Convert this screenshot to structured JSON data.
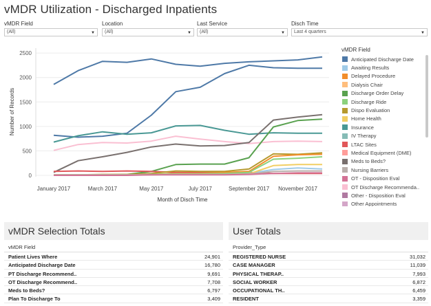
{
  "title": "vMDR Utilization - Discharged Inpatients",
  "filters": [
    {
      "label": "vMDR Field",
      "value": "(All)"
    },
    {
      "label": "Location",
      "value": "(All)"
    },
    {
      "label": "Last Service",
      "value": "(All)"
    },
    {
      "label": "Disch Time",
      "value": "Last 4 quarters"
    }
  ],
  "legend": {
    "title": "vMDR Field",
    "items": [
      {
        "label": "Anticipated Discharge Date",
        "color": "#4e79a7"
      },
      {
        "label": "Awaiting Results",
        "color": "#a0cbe8"
      },
      {
        "label": "Delayed Procedure",
        "color": "#f28e2b"
      },
      {
        "label": "Dialysis Chair",
        "color": "#ffbe7d"
      },
      {
        "label": "Discharge Order Delay",
        "color": "#59a14f"
      },
      {
        "label": "Discharge Ride",
        "color": "#8cd17d"
      },
      {
        "label": "Dispo Evaluation",
        "color": "#b6992d"
      },
      {
        "label": "Home Health",
        "color": "#f1ce63"
      },
      {
        "label": "Insurance",
        "color": "#499894"
      },
      {
        "label": "IV Therapy",
        "color": "#86bcb6"
      },
      {
        "label": "LTAC Sites",
        "color": "#e15759"
      },
      {
        "label": "Medical Equipment (DME)",
        "color": "#ff9d9a"
      },
      {
        "label": "Meds to Beds?",
        "color": "#79706e"
      },
      {
        "label": "Nursing Barriers",
        "color": "#bab0ac"
      },
      {
        "label": "OT - Disposition Eval",
        "color": "#d37295"
      },
      {
        "label": "OT Discharge Recommenda..",
        "color": "#fabfd2"
      },
      {
        "label": "Other - Disposition Eval",
        "color": "#b07aa1"
      },
      {
        "label": "Other Appointments",
        "color": "#d4a6c8"
      }
    ]
  },
  "chart_data": {
    "type": "line",
    "xlabel": "Month of Disch Time",
    "ylabel": "Number of Records",
    "x_ticks": [
      "January 2017",
      "March 2017",
      "May 2017",
      "July 2017",
      "September 2017",
      "November 2017"
    ],
    "x": [
      "Jan 2017",
      "Feb 2017",
      "Mar 2017",
      "Apr 2017",
      "May 2017",
      "Jun 2017",
      "Jul 2017",
      "Aug 2017",
      "Sep 2017",
      "Oct 2017",
      "Nov 2017",
      "Dec 2017"
    ],
    "ylim": [
      0,
      2600
    ],
    "y_ticks": [
      0,
      500,
      1000,
      1500,
      2000,
      2500
    ],
    "grid": "horizontal",
    "series": [
      {
        "name": "Anticipated Discharge Date",
        "color": "#4e79a7",
        "values": [
          1860,
          2140,
          2330,
          2310,
          2380,
          2270,
          2230,
          2290,
          2320,
          2340,
          2360,
          2420
        ]
      },
      {
        "name": "Anticipated Discharge Date",
        "color": "#4e79a7",
        "values": [
          820,
          780,
          800,
          860,
          1230,
          1710,
          1800,
          2080,
          2250,
          2200,
          2190,
          2190
        ]
      },
      {
        "name": "Insurance",
        "color": "#499894",
        "values": [
          680,
          810,
          890,
          840,
          870,
          1010,
          1020,
          920,
          840,
          870,
          860,
          860
        ]
      },
      {
        "name": "OT Discharge Recommenda..",
        "color": "#fabfd2",
        "values": [
          510,
          630,
          670,
          660,
          700,
          800,
          740,
          690,
          650,
          690,
          700,
          690
        ]
      },
      {
        "name": "Meds to Beds?",
        "color": "#79706e",
        "values": [
          60,
          300,
          380,
          470,
          580,
          640,
          600,
          610,
          670,
          1130,
          1190,
          1240
        ]
      },
      {
        "name": "Discharge Order Delay",
        "color": "#59a14f",
        "values": [
          10,
          10,
          10,
          20,
          80,
          220,
          230,
          230,
          360,
          990,
          1120,
          1150
        ]
      },
      {
        "name": "LTAC Sites",
        "color": "#e15759",
        "values": [
          80,
          90,
          80,
          90,
          80,
          60,
          60,
          60,
          60,
          40,
          40,
          40
        ]
      },
      {
        "name": "Dispo Evaluation",
        "color": "#b6992d",
        "values": [
          10,
          10,
          20,
          20,
          40,
          90,
          80,
          80,
          130,
          440,
          430,
          460
        ]
      },
      {
        "name": "Delayed Procedure",
        "color": "#f28e2b",
        "values": [
          10,
          10,
          10,
          10,
          20,
          40,
          40,
          60,
          80,
          390,
          420,
          430
        ]
      },
      {
        "name": "Awaiting Results",
        "color": "#a0cbe8",
        "values": [
          10,
          10,
          10,
          10,
          20,
          20,
          20,
          30,
          40,
          120,
          150,
          130
        ]
      },
      {
        "name": "Discharge Ride",
        "color": "#8cd17d",
        "values": [
          10,
          10,
          10,
          10,
          20,
          30,
          30,
          40,
          60,
          330,
          350,
          380
        ]
      },
      {
        "name": "Home Health",
        "color": "#f1ce63",
        "values": [
          10,
          10,
          10,
          10,
          10,
          20,
          20,
          20,
          30,
          200,
          220,
          220
        ]
      },
      {
        "name": "Nursing Barriers",
        "color": "#bab0ac",
        "values": [
          10,
          10,
          10,
          10,
          10,
          20,
          20,
          20,
          30,
          80,
          90,
          90
        ]
      },
      {
        "name": "OT - Disposition Eval",
        "color": "#d37295",
        "values": [
          0,
          0,
          0,
          0,
          10,
          10,
          10,
          10,
          20,
          40,
          50,
          50
        ]
      }
    ]
  },
  "selection_totals": {
    "title": "vMDR Selection Totals",
    "column": "vMDR Field",
    "rows": [
      {
        "label": "Patient Lives Where",
        "value": "24,901"
      },
      {
        "label": "Anticipated Discharge Date",
        "value": "16,780"
      },
      {
        "label": "PT Discharge Recommend..",
        "value": "9,691"
      },
      {
        "label": "OT Discharge Recommend..",
        "value": "7,708"
      },
      {
        "label": "Meds to Beds?",
        "value": "6,797"
      },
      {
        "label": "Plan To Discharge To",
        "value": "3,409"
      }
    ]
  },
  "user_totals": {
    "title": "User Totals",
    "column": "Provider_Type",
    "rows": [
      {
        "label": "REGISTERED NURSE",
        "value": "31,032"
      },
      {
        "label": "CASE MANAGER",
        "value": "11,039"
      },
      {
        "label": "PHYSICAL THERAP..",
        "value": "7,993"
      },
      {
        "label": "SOCIAL WORKER",
        "value": "6,872"
      },
      {
        "label": "OCCUPATIONAL TH..",
        "value": "6,459"
      },
      {
        "label": "RESIDENT",
        "value": "3,359"
      }
    ]
  }
}
